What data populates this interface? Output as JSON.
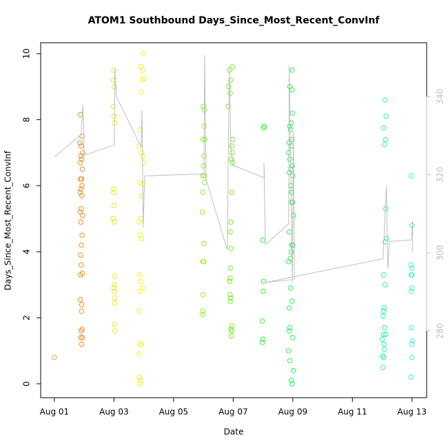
{
  "chart_data": {
    "type": "scatter",
    "title": "ATOM1 Southbound Days_Since_Most_Recent_ConvInf",
    "x_label": "Date",
    "y_label": "Days_Since_Most_Recent_ConvInf",
    "xlim": [
      0.54,
      13.49
    ],
    "xticks": [
      {
        "value": 1,
        "label": "Aug 01"
      },
      {
        "value": 3,
        "label": "Aug 03"
      },
      {
        "value": 5,
        "label": "Aug 05"
      },
      {
        "value": 7,
        "label": "Aug 07"
      },
      {
        "value": 9,
        "label": "Aug 09"
      },
      {
        "value": 11,
        "label": "Aug 11"
      },
      {
        "value": 13,
        "label": "Aug 13"
      }
    ],
    "ylim": [
      -0.42,
      10.33
    ],
    "yticks": [
      0,
      2,
      4,
      6,
      8,
      10
    ],
    "y2lim": [
      262.9,
      353.8
    ],
    "y2ticks": [
      280,
      300,
      320,
      340
    ],
    "series": [
      {
        "color": "#F0A040",
        "x": [
          1.0
        ],
        "values": [
          0.8
        ]
      },
      {
        "color": "#F08C1E",
        "x": [
          1.88,
          1.93,
          1.86,
          1.9,
          1.95,
          1.89,
          1.92,
          1.87,
          1.94,
          1.88,
          1.91,
          1.93,
          1.89,
          1.86,
          1.92,
          1.9,
          1.87,
          1.95,
          1.89,
          1.93,
          1.91,
          1.88,
          1.9,
          1.94,
          1.88,
          1.87,
          1.92,
          1.91,
          1.93,
          1.9,
          1.89,
          1.94,
          1.92
        ],
        "values": [
          8.15,
          7.5,
          7.3,
          7.2,
          7.0,
          6.9,
          6.8,
          6.7,
          6.5,
          6.2,
          6.2,
          6.0,
          5.9,
          5.8,
          5.7,
          5.3,
          5.2,
          5.1,
          4.9,
          4.5,
          4.2,
          3.9,
          3.6,
          3.35,
          3.3,
          2.55,
          2.4,
          2.2,
          1.65,
          1.6,
          1.4,
          1.4,
          1.2
        ]
      },
      {
        "color": "#E6E61E",
        "x": [
          3.0,
          2.99,
          3.01,
          2.98,
          3.0,
          3.02,
          2.99,
          3.0,
          3.0,
          2.98,
          3.01,
          3.03,
          3.02,
          3.0,
          3.01,
          3.03,
          3.02,
          3.02,
          3.03
        ],
        "values": [
          9.5,
          9.2,
          9.0,
          8.4,
          8.1,
          7.9,
          5.9,
          5.8,
          5.4,
          5.0,
          4.9,
          3.25,
          3.0,
          2.9,
          2.8,
          2.6,
          2.45,
          1.8,
          1.6
        ]
      },
      {
        "color": "#F2F21E",
        "x": [
          3.98,
          3.9,
          3.96,
          4.0,
          3.95,
          3.92,
          3.88,
          3.85,
          3.93,
          3.98,
          4.02,
          3.87,
          3.96,
          3.93,
          3.9,
          3.85,
          3.88,
          3.92,
          3.86,
          3.9,
          3.95,
          3.88,
          3.85,
          3.88,
          3.91,
          3.84,
          3.85,
          3.9,
          3.88
        ],
        "values": [
          10.0,
          9.6,
          9.5,
          9.25,
          9.2,
          8.85,
          7.7,
          7.2,
          7.0,
          6.9,
          6.7,
          6.1,
          6.05,
          5.7,
          5.0,
          4.9,
          4.5,
          4.4,
          3.3,
          3.1,
          2.9,
          2.8,
          2.2,
          1.2,
          1.2,
          0.9,
          0.2,
          0.1,
          0.0
        ]
      },
      {
        "color": "#8CF01E",
        "x": [
          6.0,
          6.03,
          6.02,
          5.98,
          6.05,
          6.02,
          6.0,
          6.03,
          5.99,
          6.04,
          5.98,
          5.97,
          6.02,
          5.99,
          6.01,
          5.99,
          5.98,
          5.98
        ],
        "values": [
          8.4,
          8.3,
          7.8,
          7.4,
          7.4,
          6.9,
          6.6,
          6.3,
          6.3,
          6.1,
          5.8,
          5.2,
          4.25,
          3.7,
          3.7,
          2.7,
          2.2,
          2.1
        ]
      },
      {
        "color": "#78EB1E",
        "x": [
          6.98,
          6.88,
          6.92,
          6.85,
          6.9,
          6.83,
          6.98,
          6.95,
          6.97,
          6.94,
          6.98,
          6.95,
          6.92,
          6.9,
          6.93,
          6.91,
          6.9,
          6.88,
          6.9,
          6.92,
          6.9,
          6.96,
          6.93,
          6.95,
          6.94
        ],
        "values": [
          9.6,
          9.5,
          9.2,
          9.0,
          8.8,
          8.4,
          7.4,
          7.2,
          7.0,
          6.8,
          6.7,
          5.8,
          4.9,
          4.6,
          4.1,
          3.5,
          3.2,
          3.1,
          2.7,
          2.6,
          2.5,
          1.75,
          1.65,
          1.6,
          1.45
        ]
      },
      {
        "color": "#32F032",
        "x": [
          8.04,
          8.02,
          7.99,
          8.02,
          8.01,
          7.98,
          8.0,
          7.98
        ],
        "values": [
          7.8,
          7.75,
          4.35,
          3.1,
          2.8,
          1.9,
          1.35,
          1.25
        ]
      },
      {
        "color": "#28F050",
        "x": [
          8.98,
          8.9,
          8.98,
          8.99,
          8.95,
          8.9,
          8.92,
          8.97,
          8.88,
          8.95,
          8.86,
          8.9,
          8.98,
          8.94,
          8.88,
          9.0,
          8.93,
          8.96,
          8.95,
          9.0,
          9.02,
          8.88,
          8.97,
          9.0,
          8.95,
          8.92,
          8.86,
          8.93,
          8.98,
          8.88,
          8.9,
          8.88,
          9.0,
          8.86,
          8.9,
          9.02,
          8.95,
          8.98
        ],
        "values": [
          9.5,
          9.0,
          8.9,
          8.2,
          7.9,
          7.8,
          7.7,
          7.4,
          7.3,
          7.2,
          7.0,
          6.8,
          6.6,
          6.5,
          6.4,
          6.3,
          6.0,
          5.8,
          5.5,
          5.5,
          5.1,
          4.6,
          4.2,
          4.2,
          4.0,
          3.8,
          3.7,
          2.9,
          2.5,
          2.3,
          1.7,
          1.6,
          1.4,
          1.0,
          0.7,
          0.4,
          0.1,
          0.0
        ]
      },
      {
        "color": "#28F0B4",
        "x": [
          12.1,
          12.13,
          12.05,
          12.12,
          12.08,
          12.12,
          12.15,
          12.1,
          12.05,
          12.1,
          12.07,
          12.05,
          12.03,
          12.08,
          12.05,
          12.12,
          12.0,
          12.06,
          12.08,
          12.02,
          12.05,
          12.03
        ],
        "values": [
          8.6,
          8.1,
          7.75,
          7.4,
          7.25,
          5.3,
          4.4,
          4.3,
          3.3,
          3.0,
          2.3,
          2.2,
          2.05,
          1.7,
          1.5,
          1.5,
          1.35,
          1.2,
          1.05,
          0.85,
          0.8,
          0.5
        ]
      },
      {
        "color": "#3CF0D2",
        "x": [
          12.98,
          13.0,
          12.97,
          13.0,
          12.97,
          13.0,
          13.0,
          12.97,
          12.98,
          13.02,
          13.0,
          13.0,
          12.97
        ],
        "values": [
          6.3,
          4.8,
          3.6,
          3.5,
          3.3,
          3.3,
          2.9,
          2.8,
          1.7,
          1.3,
          1.2,
          0.8,
          0.2
        ]
      },
      {
        "type": "line",
        "axis": "y2",
        "color": "#BEBEBE",
        "x": [
          1.0,
          1.9,
          1.95,
          1.99,
          1.99,
          3.01,
          3.03,
          3.08,
          3.91,
          3.94,
          3.98,
          4.03,
          6.02,
          6.04,
          6.09,
          6.8,
          6.87,
          6.92,
          6.99,
          8.05,
          8.03,
          8.08,
          8.86,
          8.88,
          8.98,
          9.02,
          9.05,
          8.08,
          12.03,
          12.06,
          12.14,
          12.19,
          12.24,
          12.98,
          13.02,
          13.02
        ],
        "values": [
          324.5,
          330.3,
          337.9,
          331.5,
          325.0,
          327.6,
          347.1,
          340.0,
          327.1,
          336.5,
          306.5,
          319.7,
          320.2,
          350.6,
          318.8,
          300.8,
          347.1,
          327.6,
          322.4,
          319.2,
          323.2,
          302.1,
          307.4,
          347.9,
          292.4,
          331.2,
          293.2,
          292.4,
          298.5,
          303.8,
          317.1,
          295.9,
          302.9,
          303.3,
          308.2,
          300.3
        ]
      }
    ]
  }
}
